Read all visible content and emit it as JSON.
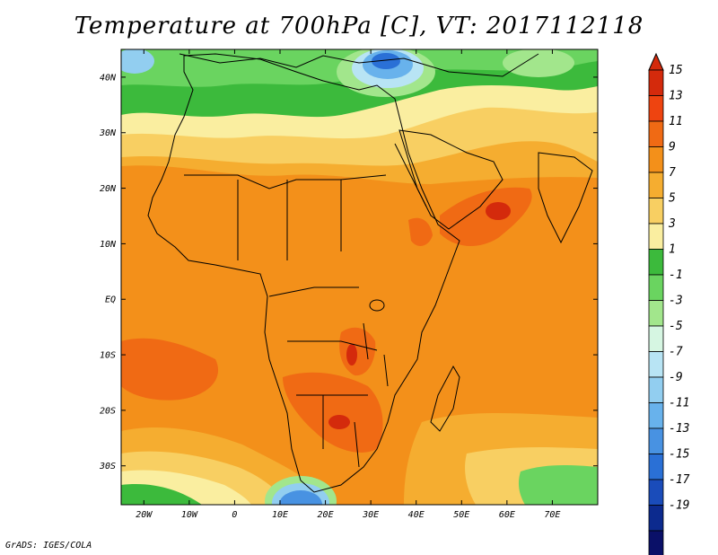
{
  "title": "Temperature at 700hPa [C], VT: 2017112118",
  "credit": "GrADS: IGES/COLA",
  "map": {
    "projection": "latlon",
    "lon_range": [
      -25,
      80
    ],
    "lat_range": [
      -37,
      45
    ],
    "lat_ticks": [
      "40N",
      "30N",
      "20N",
      "10N",
      "EQ",
      "10S",
      "20S",
      "30S"
    ],
    "lon_ticks": [
      "20W",
      "10W",
      "0",
      "10E",
      "20E",
      "30E",
      "40E",
      "50E",
      "60E",
      "70E"
    ]
  },
  "colorbar": {
    "labels": [
      "15",
      "13",
      "11",
      "9",
      "7",
      "5",
      "3",
      "1",
      "-1",
      "-3",
      "-5",
      "-7",
      "-9",
      "-11",
      "-13",
      "-15",
      "-17",
      "-19"
    ],
    "colors": [
      "#d42a0c",
      "#ee4410",
      "#f06a14",
      "#f3901a",
      "#f5ad30",
      "#f8cf62",
      "#faeea0",
      "#3cba3c",
      "#6ad460",
      "#a2e68c",
      "#d6f6e2",
      "#b8e4f4",
      "#92cef0",
      "#68b2ec",
      "#4892e2",
      "#2a70d6",
      "#1a4cba",
      "#0c2a8e",
      "#0a1068"
    ],
    "arrow_top_color": "#d42a0c",
    "arrow_bottom_color": "#c8c8f0"
  },
  "chart_data": {
    "type": "heatmap",
    "title": "Temperature at 700hPa [C], VT: 2017112118",
    "field": "temperature",
    "level": "700hPa",
    "units": "C",
    "valid_time": "2017112118",
    "lon_range": [
      -25,
      80
    ],
    "lat_range": [
      -37,
      45
    ],
    "contour_levels": [
      -19,
      -17,
      -15,
      -13,
      -11,
      -9,
      -7,
      -5,
      -3,
      -1,
      1,
      3,
      5,
      7,
      9,
      11,
      13,
      15
    ]
  }
}
